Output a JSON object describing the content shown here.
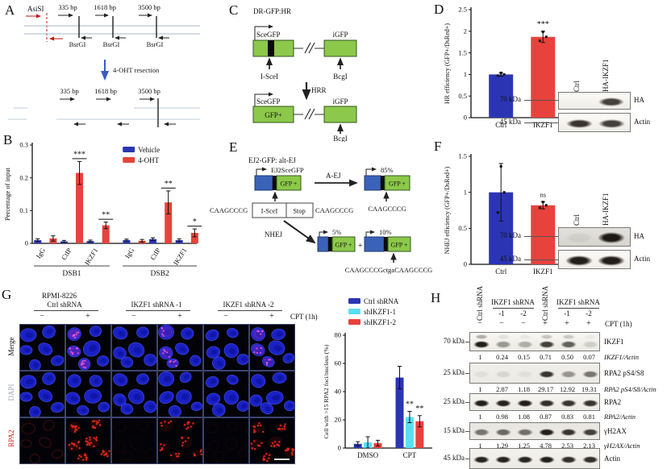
{
  "figure": {
    "panel_labels": {
      "a": "A",
      "b": "B",
      "c": "C",
      "d": "D",
      "e": "E",
      "f": "F",
      "g": "G",
      "h": "H"
    }
  },
  "panel_a": {
    "asisi": "AsiSI",
    "sites": [
      "335 bp",
      "1618 bp",
      "3500 bp"
    ],
    "enzyme": "BsrGI",
    "resection_label": "4-OHT resection"
  },
  "panel_c": {
    "title": "DR-GFP:HR",
    "scegfp": "SceGFP",
    "igfp": "iGFP",
    "isce1": "I-SceI",
    "bcgi": "BcgI",
    "hrr": "HRR",
    "gfp_plus": "GFP+"
  },
  "panel_e": {
    "title": "EJ2-GFP: alt-EJ",
    "construct": "EJ2SceGFP",
    "gfp_plus": "GFP +",
    "aej": "A-EJ",
    "nhej": "NHEJ",
    "pct_aej": "85%",
    "pct_nhej1": "5%",
    "pct_nhej2": "10%",
    "seq_left": "CAAGCCCG",
    "isce1": "I-SceI",
    "stop": "Stop",
    "seq_right": "CAAGCCCG",
    "seq_aej": "CAAGCCCG",
    "seq_nhej": "CAAGCCCGctgaCAAGCCCG",
    "plus": "+"
  },
  "panel_d": {
    "blot": {
      "lanes": [
        "Ctrl",
        "HA-IKZF1"
      ],
      "markers": [
        "70 kDa",
        "45 kDa"
      ],
      "proteins": [
        "HA",
        "Actin"
      ]
    }
  },
  "panel_f": {
    "blot": {
      "lanes": [
        "Ctrl",
        "HA-IKZF1"
      ],
      "markers": [
        "70 kDa",
        "45 kDa"
      ],
      "proteins": [
        "HA",
        "Actin"
      ]
    }
  },
  "panel_g": {
    "cell_line": "RPMI-8226",
    "groups": [
      "Ctrl shRNA",
      "IKZF1 shRNA -1",
      "IKZF1 shRNA -2"
    ],
    "signs": [
      "−",
      "+",
      "−",
      "+",
      "−",
      "+"
    ],
    "cpt_label": "CPT (1h)",
    "rows": [
      "Merge",
      "DAPI",
      "RPA2"
    ]
  },
  "panel_h": {
    "ctrl_label": "Ctrl shRNA",
    "ikzf1_label": "IKZF1 shRNA",
    "subs": [
      "-1",
      "-2"
    ],
    "signs": [
      "−",
      "−",
      "−",
      "+",
      "+",
      "+"
    ],
    "cpt_label": "CPT (1h)",
    "blots": [
      {
        "kda": "70 kDa",
        "protein": "IKZF1",
        "intensities": [
          0.95,
          0.4,
          0.3,
          0.8,
          0.65,
          0.15
        ],
        "upper": [
          0.45,
          0.12,
          0.08,
          0.3,
          0.28,
          0.06
        ],
        "ratios": [
          "1",
          "0.24",
          "0.15",
          "0.71",
          "0.50",
          "0.07"
        ],
        "ratio_label": "IKZF1/Actin"
      },
      {
        "kda": "25 kDa",
        "protein": "RPA2 pS4/S8",
        "intensities": [
          0.06,
          0.1,
          0.06,
          0.85,
          0.4,
          0.55
        ],
        "ratios": [
          "1",
          "2.87",
          "1.18",
          "29.17",
          "12.92",
          "19.31"
        ],
        "ratio_label": "RPA2 pS4/S8/Actin"
      },
      {
        "kda": "25 kDa",
        "protein": "RPA2",
        "intensities": [
          0.95,
          0.93,
          0.95,
          0.88,
          0.85,
          0.85
        ],
        "ratios": [
          "1",
          "0.98",
          "1.08",
          "0.87",
          "0.83",
          "0.81"
        ],
        "ratio_label": "RPA2/Actin"
      },
      {
        "kda": "15 kDa",
        "protein": "γH2AX",
        "intensities": [
          0.55,
          0.6,
          0.58,
          0.95,
          0.85,
          0.8
        ],
        "ratios": [
          "1",
          "1.29",
          "1.25",
          "4.78",
          "2.53",
          "2.13"
        ],
        "ratio_label": "γH2AX/Actin"
      },
      {
        "kda": "45 kDa",
        "protein": "Actin",
        "intensities": [
          0.92,
          0.92,
          0.92,
          0.95,
          0.88,
          0.88
        ]
      }
    ]
  },
  "chart_data": [
    {
      "id": "B",
      "type": "bar",
      "ylabel": "Percentage of input",
      "ylim": [
        0,
        0.3
      ],
      "yticks": [
        0,
        0.1,
        0.2,
        0.3
      ],
      "groups": [
        "DSB1",
        "DSB2"
      ],
      "categories": [
        "IgG",
        "CtIP",
        "IKZF1",
        "IgG",
        "CtIP",
        "IKZF1"
      ],
      "legend": [
        "Vehicle",
        "4-OHT"
      ],
      "legend_colors": [
        "#2b35b4",
        "#e8423c"
      ],
      "series": [
        {
          "name": "Vehicle",
          "color": "#2b35b4",
          "values": [
            0.01,
            0.006,
            0.007,
            0.01,
            0.013,
            0.01
          ],
          "errors": [
            0.004,
            0.003,
            0.003,
            0.003,
            0.004,
            0.004
          ]
        },
        {
          "name": "4-OHT",
          "color": "#e8423c",
          "values": [
            0.015,
            0.215,
            0.055,
            0.008,
            0.125,
            0.032
          ],
          "errors": [
            0.008,
            0.035,
            0.01,
            0.004,
            0.035,
            0.012
          ],
          "sig": [
            "",
            "***",
            "**",
            "",
            "**",
            "*"
          ]
        }
      ]
    },
    {
      "id": "D",
      "type": "bar",
      "ylabel": "HR efficiency (GFP+/DsRed+)",
      "ylim": [
        0,
        2.5
      ],
      "yticks": [
        0,
        0.5,
        1,
        1.5,
        2,
        2.5
      ],
      "categories": [
        "Ctrl",
        "IKZF1"
      ],
      "values": [
        1.0,
        1.87
      ],
      "errors": [
        0.04,
        0.13
      ],
      "colors": [
        "#2b35b4",
        "#e8423c"
      ],
      "sig": [
        "",
        "***"
      ]
    },
    {
      "id": "F",
      "type": "bar",
      "ylabel": "NHEJ efficiency (GFP+/DsRed+)",
      "ylim": [
        0,
        1.5
      ],
      "yticks": [
        0,
        0.5,
        1,
        1.5
      ],
      "categories": [
        "Ctrl",
        "IKZF1"
      ],
      "values": [
        1.0,
        0.82
      ],
      "errors": [
        0.4,
        0.05
      ],
      "colors": [
        "#2b35b4",
        "#e8423c"
      ],
      "sig": [
        "",
        "ns"
      ]
    },
    {
      "id": "G",
      "type": "bar",
      "ylabel": "Cell with >15 RPA2 foci/nucleus (%)",
      "ylim": [
        0,
        80
      ],
      "yticks": [
        0,
        20,
        40,
        60,
        80
      ],
      "categories": [
        "DMSO",
        "CPT"
      ],
      "legend": [
        "Ctrl shRNA",
        "shIKZF1-1",
        "shIKZF1-2"
      ],
      "legend_colors": [
        "#2b35b4",
        "#59dff0",
        "#e8423c"
      ],
      "series": [
        {
          "name": "Ctrl shRNA",
          "color": "#2b35b4",
          "values": [
            3,
            50
          ],
          "errors": [
            1.5,
            8
          ],
          "sig": [
            "",
            ""
          ]
        },
        {
          "name": "shIKZF1-1",
          "color": "#59dff0",
          "values": [
            4,
            22
          ],
          "errors": [
            4,
            4
          ],
          "sig": [
            "",
            "**"
          ]
        },
        {
          "name": "shIKZF1-2",
          "color": "#e8423c",
          "values": [
            3.5,
            19
          ],
          "errors": [
            2,
            4
          ],
          "sig": [
            "",
            "**"
          ]
        }
      ]
    }
  ]
}
